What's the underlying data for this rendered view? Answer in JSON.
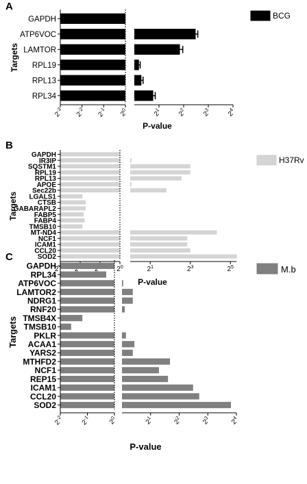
{
  "chart_data": [
    {
      "type": "bar",
      "panel_label": "A",
      "orientation": "horizontal",
      "scale": "log2",
      "color": "#000000",
      "categories": [
        "GAPDH",
        "ATP6VOC",
        "LAMTOR",
        "RPL19",
        "RPL13",
        "RPL34"
      ],
      "left_values": [
        1,
        1,
        1,
        1,
        1,
        1
      ],
      "right_values": [
        1,
        5.6,
        3.6,
        1.14,
        1.22,
        1.7
      ],
      "right_errors": [
        0,
        0.35,
        0.3,
        0.04,
        0.06,
        0.1
      ],
      "left_ticks": [
        "2",
        "2",
        "2",
        "2"
      ],
      "left_tick_exps": [
        "-3",
        "-2",
        "-1",
        "0"
      ],
      "right_ticks": [
        "2",
        "2",
        "2",
        "2"
      ],
      "right_tick_exps": [
        "1",
        "2",
        "3",
        "4"
      ],
      "xlabel": "P-value",
      "ylabel": "Targets",
      "legend": "BCG"
    },
    {
      "type": "bar",
      "panel_label": "B",
      "orientation": "horizontal",
      "scale": "log2",
      "color": "#d4d4d4",
      "categories": [
        "GAPDH",
        "IR3IP",
        "SQSTM1",
        "RPL19",
        "RPL13",
        "APOE",
        "Sec22b",
        "LGALS1",
        "CTSB",
        "GABARAPL2",
        "FABP5",
        "FABP4",
        "TMSB10",
        "MT-ND4",
        "NCF1",
        "ICAM1",
        "CCL20",
        "SOD2"
      ],
      "left_values": [
        1,
        1,
        1,
        1,
        1,
        1,
        1,
        2.1e-06,
        6.9e-06,
        6.9e-06,
        3.3e-06,
        4.6e-06,
        2.1e-06,
        1,
        1,
        1,
        1,
        1
      ],
      "right_values": [
        1,
        1.05,
        8,
        8,
        5.9,
        1.05,
        3.5,
        1,
        1,
        1,
        1,
        1,
        1,
        20,
        7.2,
        7.2,
        8,
        40
      ],
      "left_ticks": [
        "2",
        "2",
        "2",
        "2"
      ],
      "left_tick_exps": [
        "-30",
        "-20",
        "-10",
        "0"
      ],
      "right_ticks": [
        "2",
        "2",
        "2"
      ],
      "right_tick_exps": [
        "1",
        "3",
        "5"
      ],
      "xlabel": "P-value",
      "ylabel": "Targets",
      "legend": "H37Rv"
    },
    {
      "type": "bar",
      "panel_label": "C",
      "orientation": "horizontal",
      "scale": "log2",
      "color": "#808080",
      "categories": [
        "GAPDH",
        "RPL34",
        "ATP6VOC",
        "LAMTOR2",
        "NDRG1",
        "RNF20",
        "TMSB4X",
        "TMSB10",
        "PKLR",
        "ACAA1",
        "YARS2",
        "MTHFD2",
        "NCF1",
        "REP15",
        "ICAM1",
        "CCL20",
        "SOD2"
      ],
      "left_values": [
        1,
        0.81,
        1,
        1,
        1,
        1,
        0.44,
        0.33,
        1,
        1,
        1,
        1,
        1,
        1,
        1,
        1,
        1
      ],
      "right_values": [
        1,
        1,
        1.03,
        1.3,
        1.3,
        1.07,
        1,
        1,
        1.1,
        1.35,
        1.3,
        3.2,
        2.45,
        3.05,
        5.6,
        6.5,
        14
      ],
      "left_ticks": [
        "2",
        "2",
        "2"
      ],
      "left_tick_exps": [
        "-2",
        "-1",
        "0"
      ],
      "right_ticks": [
        "2",
        "2",
        "2",
        "2"
      ],
      "right_tick_exps": [
        "1",
        "2",
        "3",
        "4"
      ],
      "xlabel": "P-value",
      "ylabel": "Targets",
      "legend": "M.b"
    }
  ]
}
